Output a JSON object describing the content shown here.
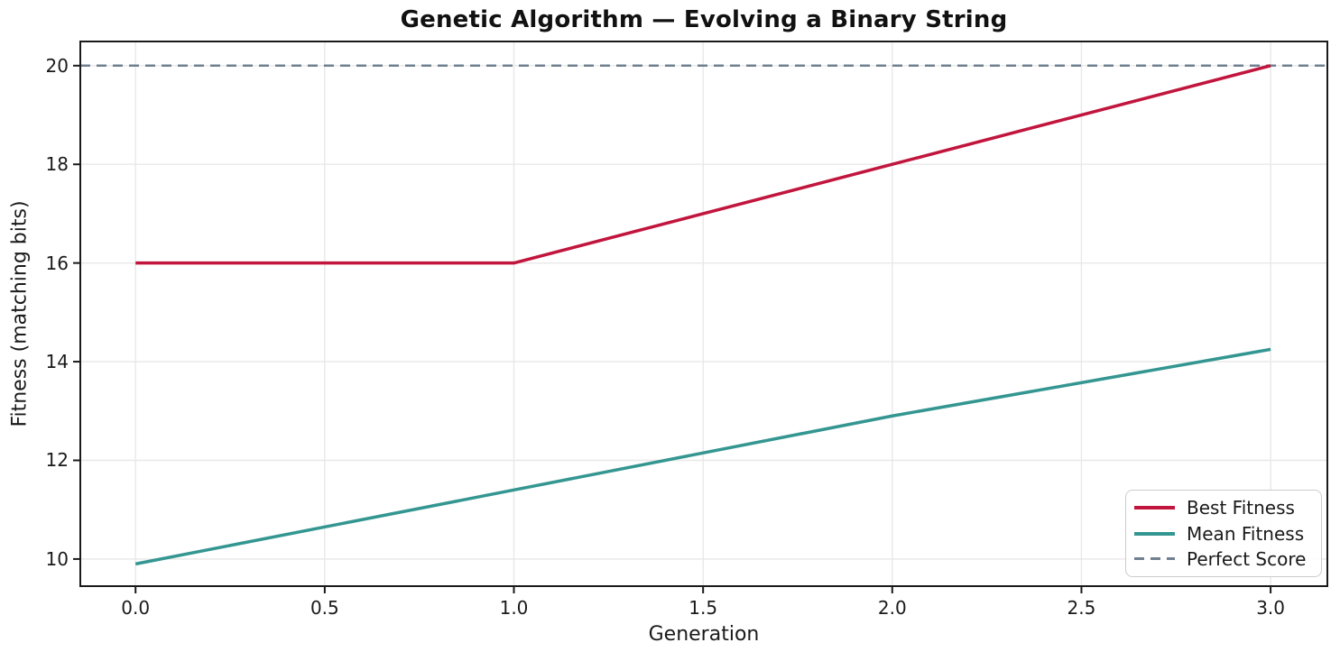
{
  "chart_data": {
    "type": "line",
    "title": "Genetic Algorithm — Evolving a Binary String",
    "xlabel": "Generation",
    "ylabel": "Fitness (matching bits)",
    "x": [
      0,
      1,
      2,
      3
    ],
    "series": [
      {
        "name": "Best Fitness",
        "values": [
          16,
          16,
          18,
          20
        ],
        "color": "#c1153d",
        "style": "solid",
        "width": 3.5
      },
      {
        "name": "Mean Fitness",
        "values": [
          9.9,
          11.4,
          12.9,
          14.25
        ],
        "color": "#349691",
        "style": "solid",
        "width": 3.5
      }
    ],
    "reference_lines": [
      {
        "name": "Perfect Score",
        "value": 20,
        "color": "#708090",
        "style": "dashed",
        "width": 2.5
      }
    ],
    "xlim": [
      -0.146,
      3.15
    ],
    "ylim": [
      9.45,
      20.49
    ],
    "xticks": {
      "values": [
        0,
        0.5,
        1,
        1.5,
        2,
        2.5,
        3
      ],
      "labels": [
        "0.0",
        "0.5",
        "1.0",
        "1.5",
        "2.0",
        "2.5",
        "3.0"
      ]
    },
    "yticks": {
      "values": [
        10,
        12,
        14,
        16,
        18,
        20
      ],
      "labels": [
        "10",
        "12",
        "14",
        "16",
        "18",
        "20"
      ]
    },
    "grid": true,
    "grid_color": "#e8e8e8",
    "spine_color": "#1a1a1a",
    "text_color": "#1a1a1a",
    "legend": {
      "position": "lower right",
      "entries": [
        {
          "label": "Best Fitness",
          "color": "#c1153d",
          "style": "solid"
        },
        {
          "label": "Mean Fitness",
          "color": "#349691",
          "style": "solid"
        },
        {
          "label": "Perfect Score",
          "color": "#708090",
          "style": "dashed"
        }
      ]
    }
  }
}
